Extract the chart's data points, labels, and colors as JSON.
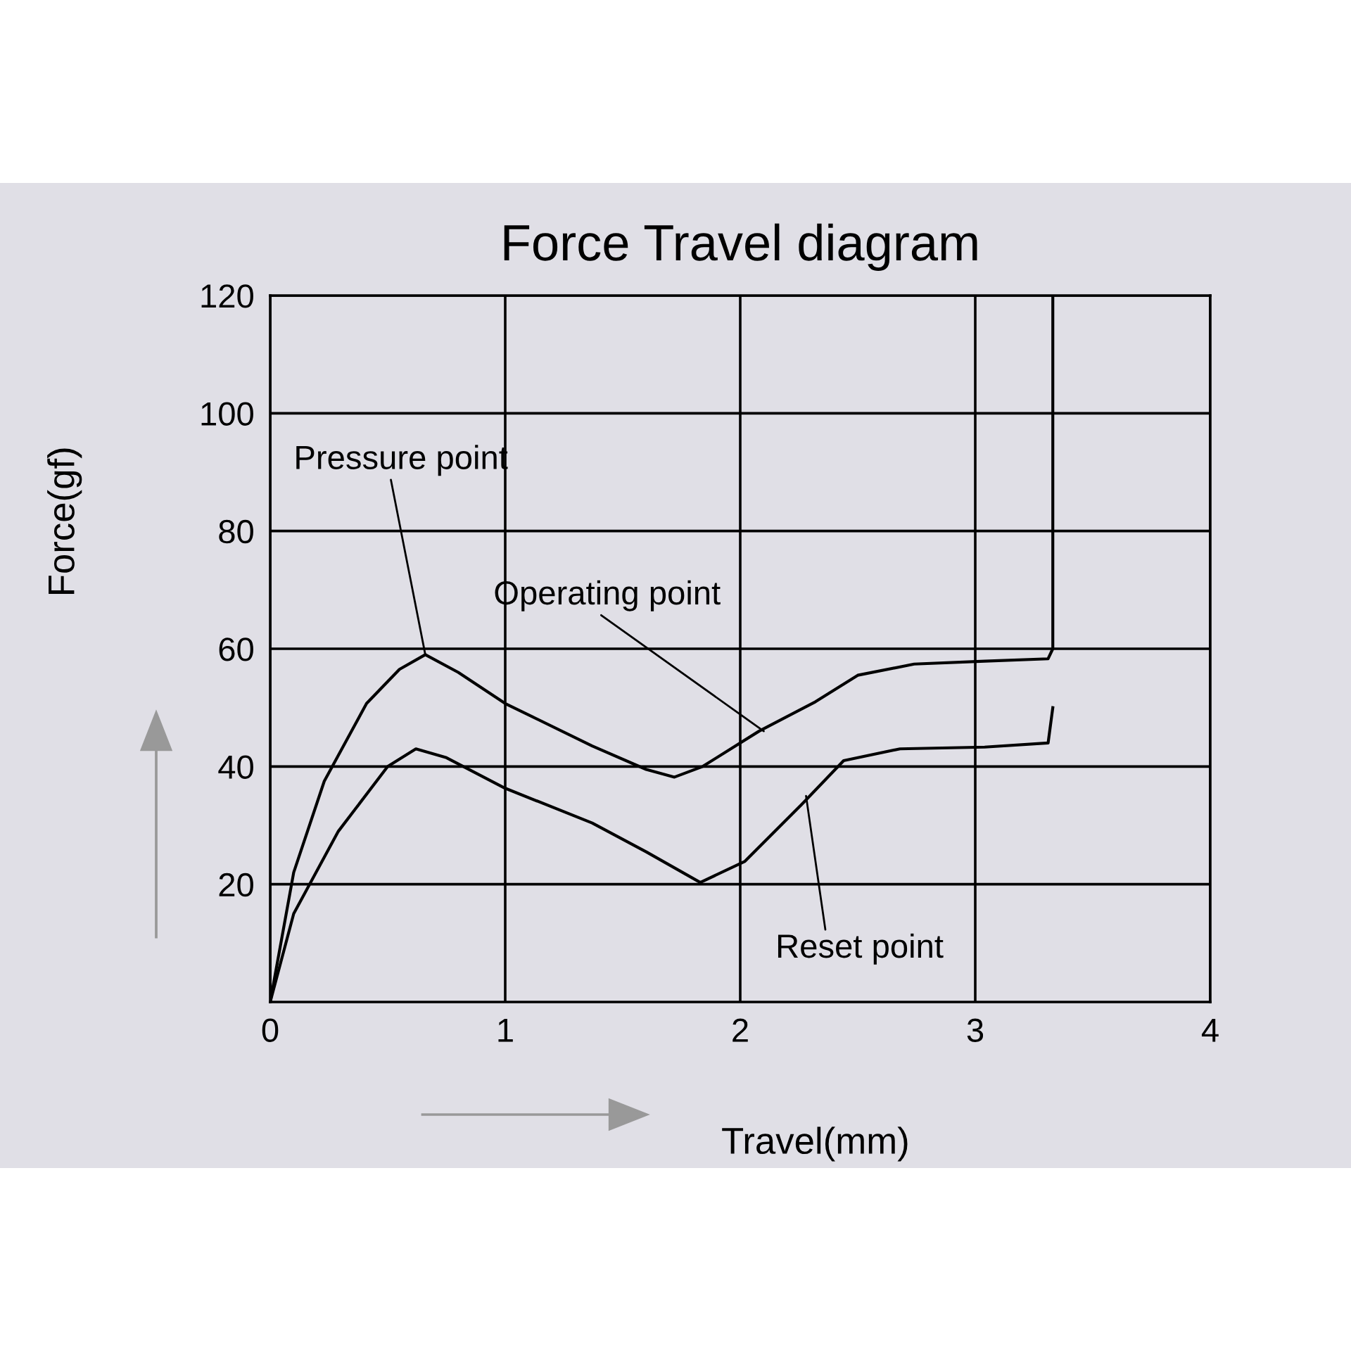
{
  "chart_data": {
    "type": "line",
    "title": "Force Travel diagram",
    "xlabel": "Travel(mm)",
    "ylabel": "Force(gf)",
    "series": [
      {
        "color": "#000000",
        "x": [
          0,
          0.1,
          0.23,
          0.41,
          0.55,
          0.66,
          0.8,
          1.0,
          1.37,
          1.6,
          1.72,
          1.84,
          2.08,
          2.32,
          2.5,
          2.74,
          3.04,
          3.31,
          3.33,
          3.33
        ],
        "values": [
          0,
          22,
          37.5,
          50.7,
          56.5,
          59,
          56,
          50.7,
          43.5,
          39.5,
          38.2,
          40,
          46,
          51,
          55.5,
          57.4,
          57.9,
          58.3,
          60,
          120
        ]
      },
      {
        "color": "#000000",
        "x": [
          0,
          0.1,
          0.29,
          0.5,
          0.62,
          0.75,
          1.0,
          1.37,
          1.6,
          1.83,
          2.02,
          2.26,
          2.44,
          2.68,
          3.04,
          3.31,
          3.33
        ],
        "values": [
          0,
          15,
          29,
          40,
          43,
          41.5,
          36.3,
          30.4,
          25.5,
          20.3,
          23.9,
          33.5,
          41,
          43,
          43.3,
          44,
          50
        ]
      }
    ],
    "xlim": [
      0,
      4
    ],
    "ylim": [
      0,
      120
    ],
    "xticks": [
      0,
      1,
      2,
      3,
      4
    ],
    "yticks": [
      20,
      40,
      60,
      80,
      100,
      120
    ],
    "grid": true,
    "annotations": [
      {
        "text": "Pressure point",
        "x": 0.66,
        "y": 59
      },
      {
        "text": "Operating point",
        "x": 2.1,
        "y": 46
      },
      {
        "text": "Reset point",
        "x": 2.28,
        "y": 35
      }
    ]
  }
}
